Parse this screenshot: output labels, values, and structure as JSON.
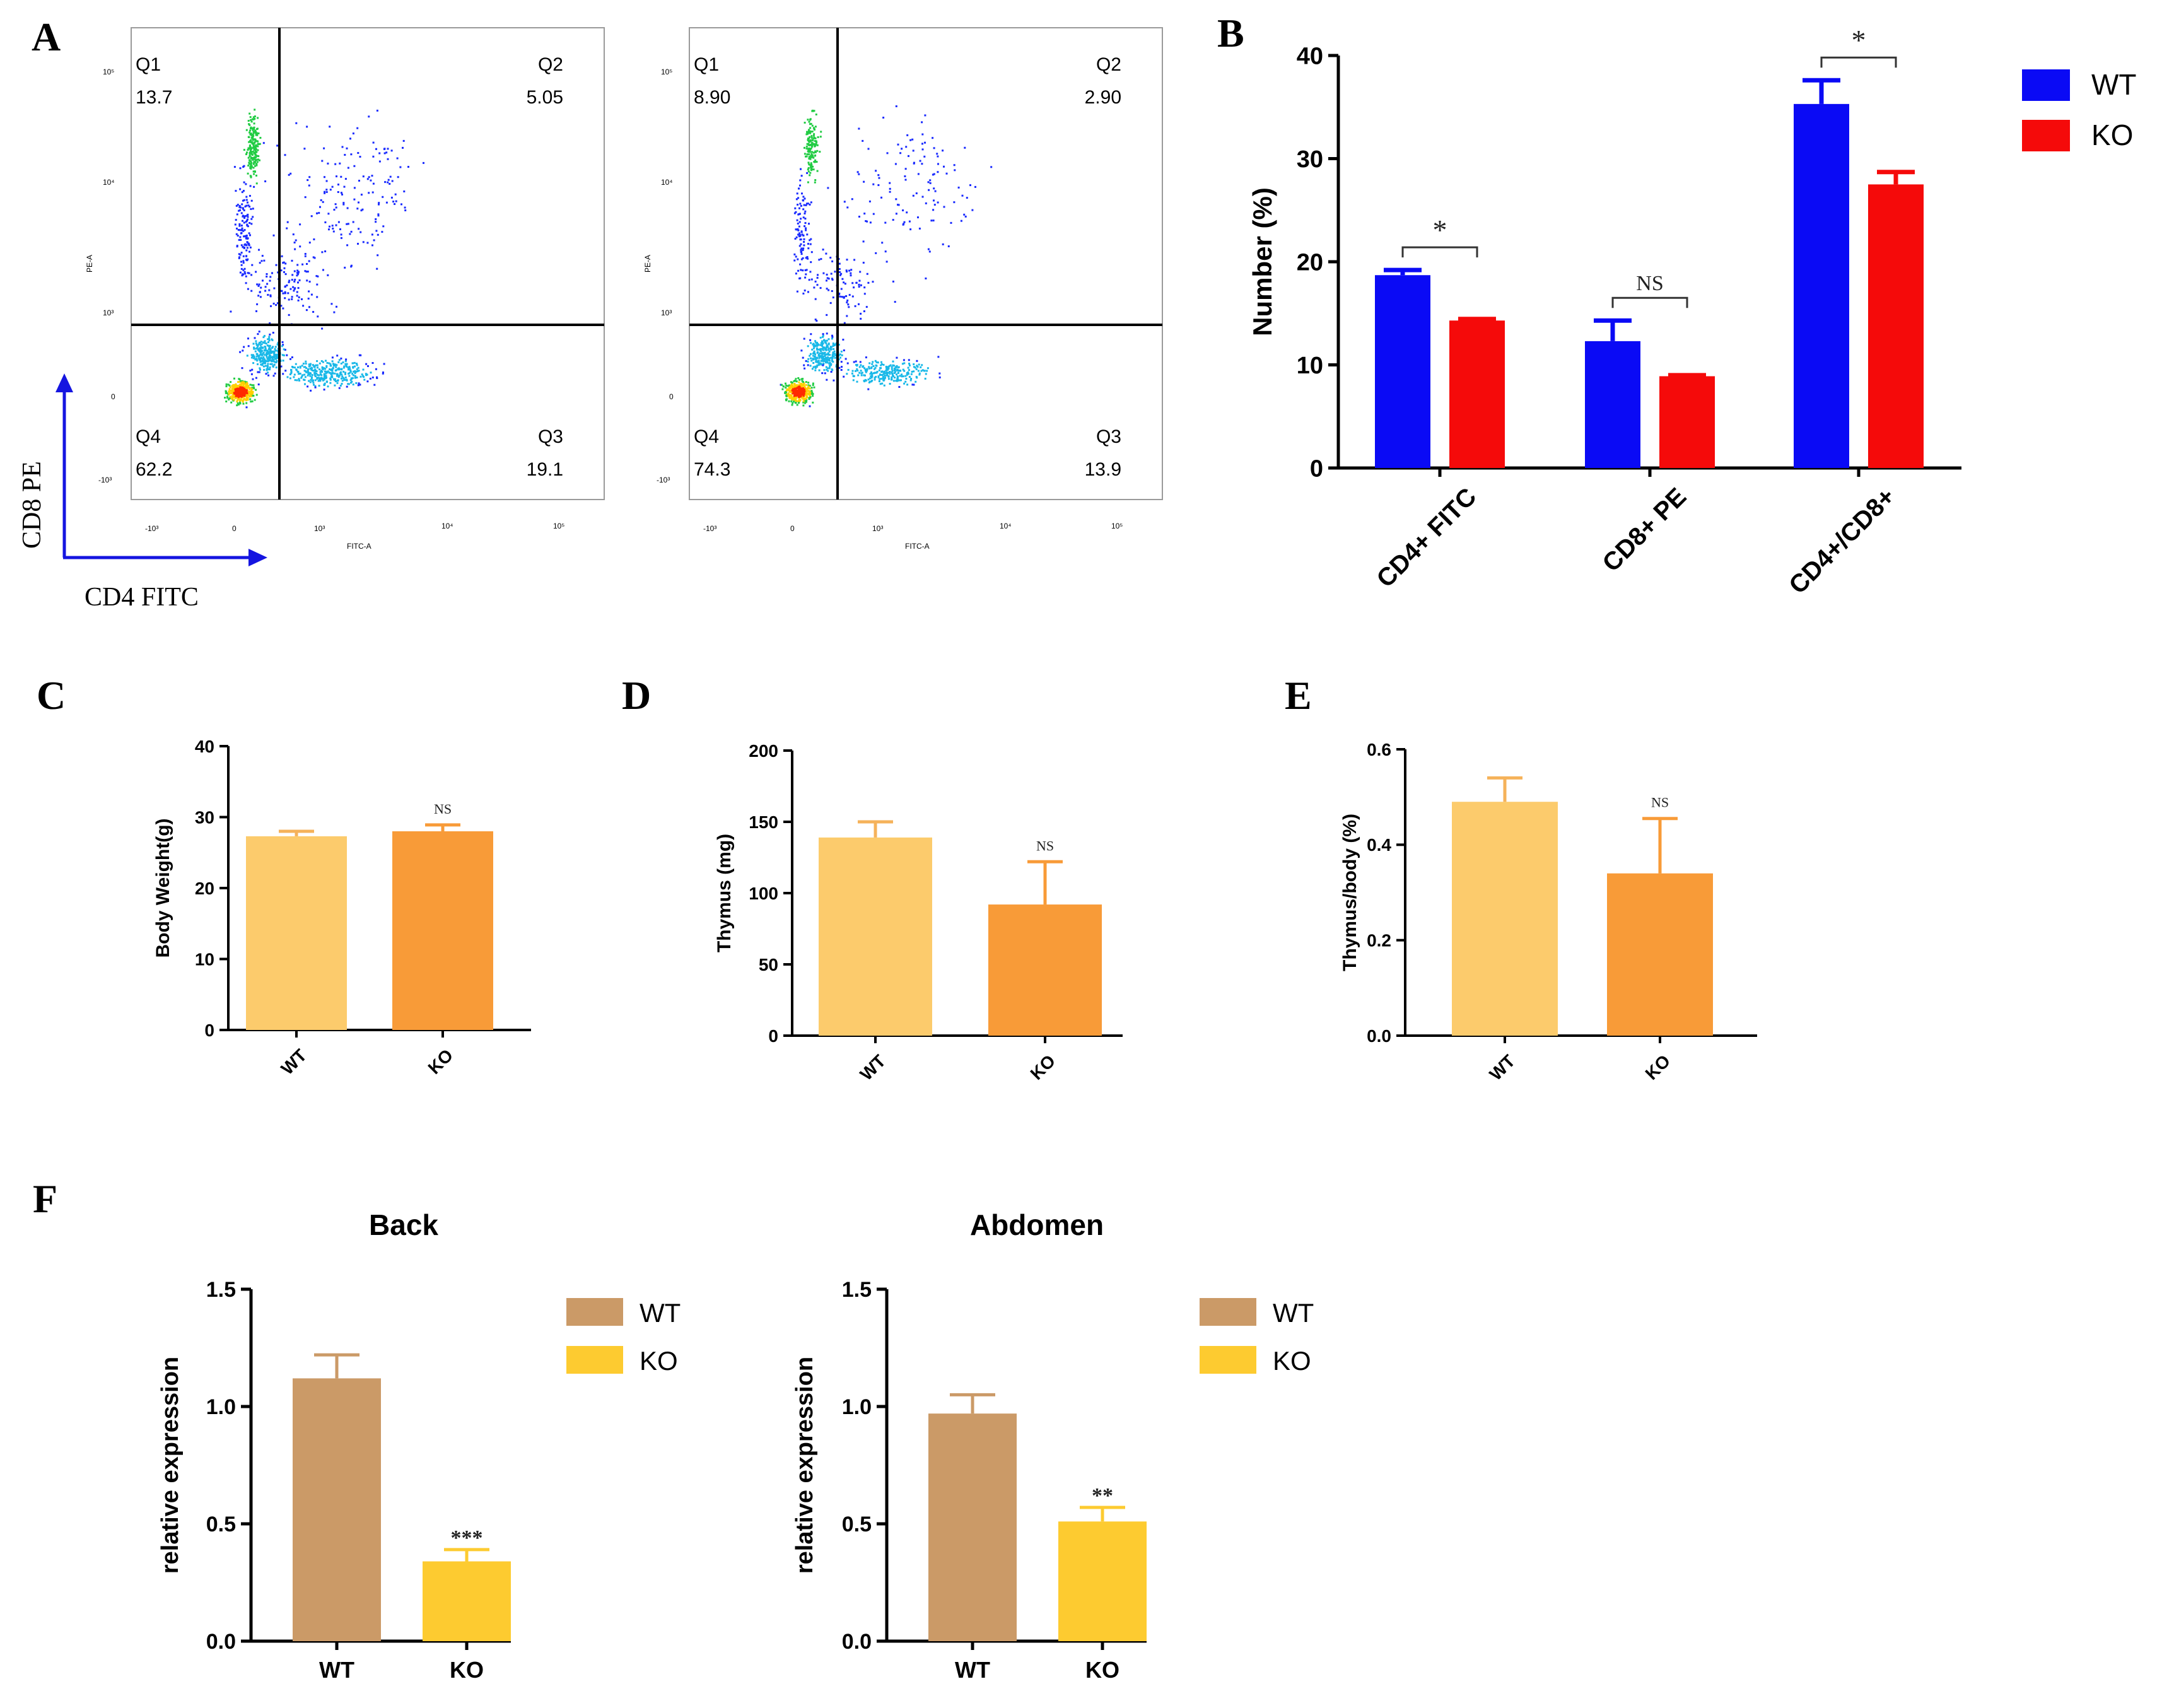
{
  "panels": {
    "a": "A",
    "b": "B",
    "c": "C",
    "d": "D",
    "e": "E",
    "f": "F"
  },
  "flow": {
    "y_axis_label": "CD8 PE",
    "x_axis_label": "CD4 FITC",
    "pe_axis": "PE-A",
    "fitc_axis": "FITC-A",
    "y_ticks": [
      "10⁵",
      "10⁴",
      "10³",
      "0",
      "-10³"
    ],
    "x_ticks": [
      "-10³",
      "0",
      "10³",
      "10⁴",
      "10⁵"
    ],
    "plots": [
      {
        "q1": "Q1",
        "q1_val": "13.7",
        "q2": "Q2",
        "q2_val": "5.05",
        "q3": "Q3",
        "q3_val": "19.1",
        "q4": "Q4",
        "q4_val": "62.2"
      },
      {
        "q1": "Q1",
        "q1_val": "8.90",
        "q2": "Q2",
        "q2_val": "2.90",
        "q3": "Q3",
        "q3_val": "13.9",
        "q4": "Q4",
        "q4_val": "74.3"
      }
    ]
  },
  "colors": {
    "wt_blue": "#0a0af5",
    "ko_red": "#f50a0a",
    "wt_light_orange": "#fccb6c",
    "ko_orange": "#f89b38",
    "err_orange": "#f5b25a",
    "wt_tan": "#cb9a67",
    "ko_yellow": "#fdcb30"
  },
  "chart_data": [
    {
      "id": "B",
      "type": "bar",
      "title": "",
      "xlabel": "",
      "ylabel": "Number (%)",
      "ylim": [
        0,
        40
      ],
      "yticks": [
        0,
        10,
        20,
        30,
        40
      ],
      "categories": [
        "CD4+ FITC",
        "CD8+ PE",
        "CD4+/CD8+"
      ],
      "series": [
        {
          "name": "WT",
          "values": [
            18.7,
            12.3,
            35.3
          ],
          "errors": [
            0.5,
            2.0,
            2.3
          ]
        },
        {
          "name": "KO",
          "values": [
            14.3,
            8.9,
            27.5
          ],
          "errors": [
            0.15,
            0.1,
            1.2
          ]
        }
      ],
      "significance": [
        "*",
        "NS",
        "*"
      ],
      "legend": [
        "WT",
        "KO"
      ]
    },
    {
      "id": "C",
      "type": "bar",
      "ylabel": "Body Weight(g)",
      "ylim": [
        0,
        40
      ],
      "yticks": [
        0,
        10,
        20,
        30,
        40
      ],
      "categories": [
        "WT",
        "KO"
      ],
      "values": [
        27.3,
        28.0
      ],
      "errors": [
        0.7,
        0.9
      ],
      "significance": [
        "",
        "NS"
      ]
    },
    {
      "id": "D",
      "type": "bar",
      "ylabel": "Thymus (mg)",
      "ylim": [
        0,
        200
      ],
      "yticks": [
        0,
        50,
        100,
        150,
        200
      ],
      "categories": [
        "WT",
        "KO"
      ],
      "values": [
        139,
        92
      ],
      "errors": [
        11,
        30
      ],
      "significance": [
        "",
        "NS"
      ]
    },
    {
      "id": "E",
      "type": "bar",
      "ylabel": "Thymus/body (%)",
      "ylim": [
        0,
        0.6
      ],
      "yticks": [
        "0.0",
        "0.2",
        "0.4",
        "0.6"
      ],
      "categories": [
        "WT",
        "KO"
      ],
      "values": [
        0.49,
        0.34
      ],
      "errors": [
        0.05,
        0.115
      ],
      "significance": [
        "",
        "NS"
      ]
    },
    {
      "id": "F-Back",
      "type": "bar",
      "title": "Back",
      "ylabel": "relative expression",
      "ylim": [
        0,
        1.5
      ],
      "yticks": [
        "0.0",
        "0.5",
        "1.0",
        "1.5"
      ],
      "categories": [
        "WT",
        "KO"
      ],
      "values": [
        1.12,
        0.34
      ],
      "errors": [
        0.1,
        0.05
      ],
      "significance": [
        "",
        "***"
      ],
      "legend": [
        "WT",
        "KO"
      ]
    },
    {
      "id": "F-Abdomen",
      "type": "bar",
      "title": "Abdomen",
      "ylabel": "relative expression",
      "ylim": [
        0,
        1.5
      ],
      "yticks": [
        "0.0",
        "0.5",
        "1.0",
        "1.5"
      ],
      "categories": [
        "WT",
        "KO"
      ],
      "values": [
        0.97,
        0.51
      ],
      "errors": [
        0.08,
        0.06
      ],
      "significance": [
        "",
        "**"
      ],
      "legend": [
        "WT",
        "KO"
      ]
    }
  ]
}
